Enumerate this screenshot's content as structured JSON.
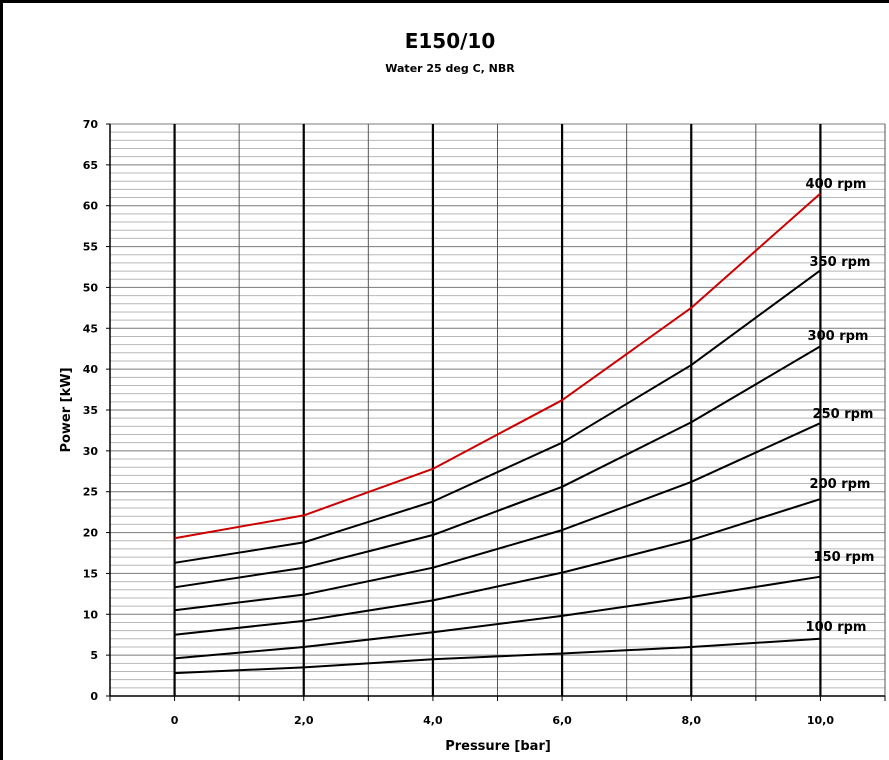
{
  "chart_data": {
    "type": "line",
    "title": "E150/10",
    "subtitle": "Water 25 deg C, NBR",
    "xlabel": "Pressure [bar]",
    "ylabel": "Power [kW]",
    "xlim": [
      -1,
      11
    ],
    "ylim": [
      0,
      70
    ],
    "x_ticks": [
      {
        "value": 0,
        "label": "0"
      },
      {
        "value": 2,
        "label": "2,0"
      },
      {
        "value": 4,
        "label": "4,0"
      },
      {
        "value": 6,
        "label": "6,0"
      },
      {
        "value": 8,
        "label": "8,0"
      },
      {
        "value": 10,
        "label": "10,0"
      }
    ],
    "y_ticks": [
      0,
      5,
      10,
      15,
      20,
      25,
      30,
      35,
      40,
      45,
      50,
      55,
      60,
      65,
      70
    ],
    "grid": true,
    "legend": "inline labels at right end of lines",
    "x": [
      0,
      2,
      4,
      6,
      8,
      10
    ],
    "series": [
      {
        "name": "100 rpm",
        "color": "#000000",
        "values": [
          2.8,
          3.5,
          4.5,
          5.2,
          6.0,
          7.0
        ]
      },
      {
        "name": "150 rpm",
        "color": "#000000",
        "values": [
          4.6,
          6.0,
          7.8,
          9.8,
          12.1,
          14.6
        ]
      },
      {
        "name": "200 rpm",
        "color": "#000000",
        "values": [
          7.5,
          9.2,
          11.7,
          15.1,
          19.1,
          24.1
        ]
      },
      {
        "name": "250 rpm",
        "color": "#000000",
        "values": [
          10.5,
          12.4,
          15.7,
          20.3,
          26.2,
          33.4
        ]
      },
      {
        "name": "300 rpm",
        "color": "#000000",
        "values": [
          13.3,
          15.7,
          19.7,
          25.6,
          33.5,
          42.8
        ]
      },
      {
        "name": "350 rpm",
        "color": "#000000",
        "values": [
          16.3,
          18.8,
          23.8,
          31.0,
          40.5,
          52.1
        ]
      },
      {
        "name": "400 rpm",
        "color": "#cc0000",
        "values": [
          19.3,
          22.1,
          27.8,
          36.2,
          47.5,
          61.5
        ]
      }
    ]
  }
}
